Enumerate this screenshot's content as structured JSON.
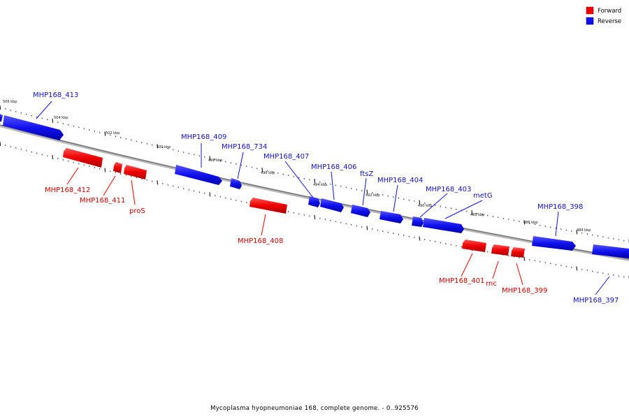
{
  "caption": "Mycoplasma hyopneumoniae 168, complete genome. - 0..925576",
  "legend": {
    "forward_label": "Forward",
    "reverse_label": "Reverse"
  },
  "colors": {
    "forward": "#ee0000",
    "reverse": "#1111ee",
    "forward_text": "#cc0000",
    "reverse_text": "#1111bb",
    "backbone": "#888888"
  },
  "scale_labels": [
    "506 kbp",
    "504 kbp",
    "502 kbp",
    "500 kbp",
    "498 kbp",
    "496 kbp",
    "494 kbp",
    "492 kbp",
    "490 kbp",
    "488 kbp",
    "486 kbp",
    "484 kbp"
  ],
  "genes": [
    {
      "name": "MHP168_413",
      "strand": "reverse"
    },
    {
      "name": "MHP168_412",
      "strand": "forward"
    },
    {
      "name": "MHP168_411",
      "strand": "forward"
    },
    {
      "name": "proS",
      "strand": "forward"
    },
    {
      "name": "MHP168_409",
      "strand": "reverse"
    },
    {
      "name": "MHP168_734",
      "strand": "reverse"
    },
    {
      "name": "MHP168_408",
      "strand": "forward"
    },
    {
      "name": "MHP168_407",
      "strand": "reverse"
    },
    {
      "name": "MHP168_406",
      "strand": "reverse"
    },
    {
      "name": "ftsZ",
      "strand": "reverse"
    },
    {
      "name": "MHP168_404",
      "strand": "reverse"
    },
    {
      "name": "MHP168_403",
      "strand": "reverse"
    },
    {
      "name": "metG",
      "strand": "reverse"
    },
    {
      "name": "MHP168_401",
      "strand": "forward"
    },
    {
      "name": "rnc",
      "strand": "forward"
    },
    {
      "name": "MHP168_399",
      "strand": "forward"
    },
    {
      "name": "MHP168_398",
      "strand": "reverse"
    },
    {
      "name": "MHP168_397",
      "strand": "reverse"
    }
  ]
}
